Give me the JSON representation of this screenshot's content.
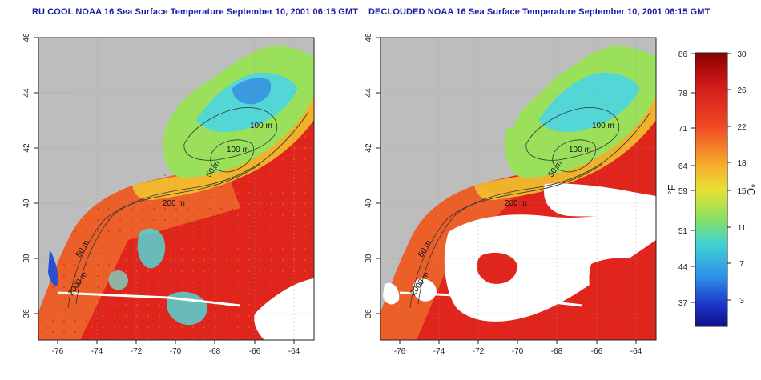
{
  "titles": {
    "left": "RU COOL NOAA 16 Sea Surface Temperature September 10, 2001 06:15 GMT",
    "right": "DECLOUDED NOAA 16 Sea Surface Temperature September 10, 2001 06:15 GMT"
  },
  "axes": {
    "x_ticks": [
      "-76",
      "-74",
      "-72",
      "-70",
      "-68",
      "-66",
      "-64"
    ],
    "y_ticks": [
      "36",
      "38",
      "40",
      "42",
      "44",
      "46"
    ]
  },
  "contour_labels": {
    "left": [
      "100 m",
      "100 m",
      "50 m",
      "200 m",
      "50 m",
      "2000 m"
    ],
    "right": [
      "100 m",
      "100 m",
      "50 m",
      "200 m",
      "50 m",
      "2000 m"
    ]
  },
  "colorbar": {
    "fahrenheit_label": "°F",
    "celsius_label": "°C",
    "fahrenheit_ticks": [
      "86",
      "78",
      "71",
      "64",
      "59",
      "51",
      "44",
      "37"
    ],
    "celsius_ticks": [
      "30",
      "26",
      "22",
      "18",
      "15",
      "11",
      "7",
      "3"
    ]
  },
  "colors": {
    "land": "#bdbdbd",
    "warm": "#e0261c",
    "orange": "#ef6a2a",
    "yellow": "#f2d42e",
    "green": "#9be05a",
    "cyan": "#53d6d6",
    "blue": "#3a7de0",
    "cloud": "#ffffff",
    "title": "#1a1aa8"
  }
}
